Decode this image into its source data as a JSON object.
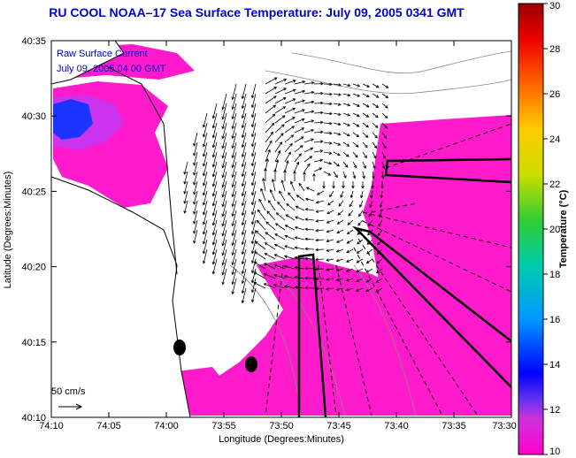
{
  "title": "RU COOL  NOAA–17  Sea Surface Temperature:  July 09, 2005 0341 GMT",
  "overlay": {
    "line1": "Raw Surface Current",
    "line2": "July 09, 2005 04 00 GMT"
  },
  "scale_label": "50 cm/s",
  "axes": {
    "xlabel": "Longitude (Degrees:Minutes)",
    "ylabel": "Latitude (Degrees:Minutes)",
    "xticks": [
      "74:10",
      "74:05",
      "74:00",
      "73:55",
      "73:50",
      "73:45",
      "73:40",
      "73:35",
      "73:30"
    ],
    "yticks": [
      "40:35",
      "40:30",
      "40:25",
      "40:20",
      "40:15",
      "40:10"
    ]
  },
  "colorbar": {
    "label": "Temperature (°C)",
    "min": 10,
    "max": 30,
    "ticks": [
      "30",
      "28",
      "26",
      "24",
      "22",
      "20",
      "18",
      "16",
      "14",
      "12",
      "10"
    ]
  },
  "colors": {
    "title": "#0000cc",
    "water_warm": "#ff1acc",
    "water_mid": "#cc33ee",
    "water_cold": "#1a33ff",
    "land": "#ffffff"
  }
}
